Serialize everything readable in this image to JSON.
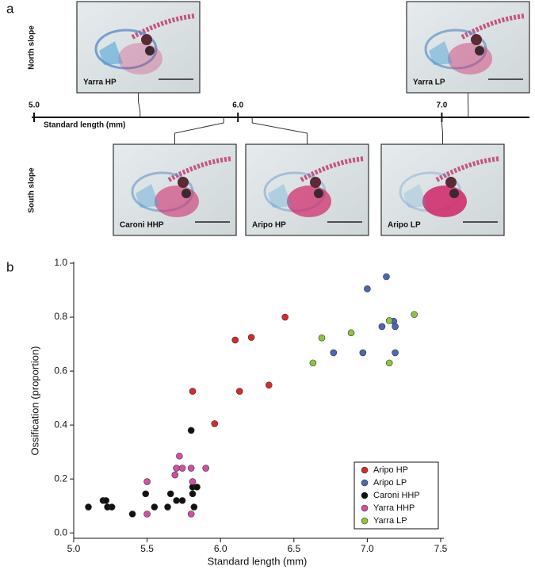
{
  "chart_data": [
    {
      "type": "specimen-axis",
      "label": "a",
      "axis_title": "Standard length (mm)",
      "xlim": [
        5.0,
        7.43
      ],
      "xticks": [
        {
          "value": 5.0,
          "label": "5.0"
        },
        {
          "value": 6.0,
          "label": "6.0"
        },
        {
          "value": 7.0,
          "label": "7.0"
        }
      ],
      "groups": [
        {
          "name": "North slope",
          "specimens": [
            {
              "name": "Yarra HP",
              "length": 5.52
            },
            {
              "name": "Yarra LP",
              "length": 7.13
            }
          ]
        },
        {
          "name": "South slope",
          "specimens": [
            {
              "name": "Caroni HHP",
              "length": 5.93
            },
            {
              "name": "Aripo HP",
              "length": 6.07
            },
            {
              "name": "Aripo LP",
              "length": 7.0
            }
          ]
        }
      ]
    },
    {
      "type": "scatter",
      "label": "b",
      "x_label": "Standard length (mm)",
      "y_label": "Ossification (proportion)",
      "xlim": [
        5.0,
        7.5
      ],
      "ylim": [
        -0.02,
        1.0
      ],
      "xticks": [
        {
          "value": 5.0,
          "label": "5.0"
        },
        {
          "value": 5.5,
          "label": "5.5"
        },
        {
          "value": 6.0,
          "label": "6.0"
        },
        {
          "value": 6.5,
          "label": "6.5"
        },
        {
          "value": 7.0,
          "label": "7.0"
        },
        {
          "value": 7.5,
          "label": "7.5"
        }
      ],
      "yticks": [
        {
          "value": 0,
          "label": "0.0"
        },
        0.2,
        0.4,
        0.6,
        0.8,
        {
          "value": 1,
          "label": "1.0"
        }
      ],
      "legend": "lower right",
      "series": [
        {
          "name": "Aripo HP",
          "color": "#d62b2b",
          "x": [
            5.81,
            5.96,
            6.1,
            6.13,
            6.21,
            6.33,
            6.44
          ],
          "values": [
            0.525,
            0.405,
            0.715,
            0.525,
            0.725,
            0.548,
            0.8
          ]
        },
        {
          "name": "Aripo LP",
          "color": "#4a68b5",
          "x": [
            7.0,
            7.13,
            6.77,
            6.97,
            7.1,
            7.18,
            7.19,
            7.19
          ],
          "values": [
            0.905,
            0.95,
            0.668,
            0.668,
            0.765,
            0.785,
            0.765,
            0.668
          ]
        },
        {
          "name": "Caroni HHP",
          "color": "#111111",
          "x": [
            5.1,
            5.2,
            5.22,
            5.23,
            5.26,
            5.4,
            5.49,
            5.55,
            5.64,
            5.66,
            5.7,
            5.74,
            5.8,
            5.81,
            5.81,
            5.82,
            5.84
          ],
          "values": [
            0.096,
            0.12,
            0.12,
            0.096,
            0.096,
            0.07,
            0.145,
            0.096,
            0.096,
            0.145,
            0.12,
            0.12,
            0.38,
            0.17,
            0.145,
            0.096,
            0.17
          ]
        },
        {
          "name": "Yarra HHP",
          "color": "#d24fa6",
          "x": [
            5.5,
            5.5,
            5.69,
            5.7,
            5.72,
            5.74,
            5.8,
            5.8,
            5.81,
            5.9
          ],
          "values": [
            0.19,
            0.07,
            0.215,
            0.24,
            0.285,
            0.24,
            0.24,
            0.07,
            0.19,
            0.24
          ]
        },
        {
          "name": "Yarra LP",
          "color": "#8cc63f",
          "x": [
            6.63,
            6.69,
            6.89,
            7.15,
            7.15,
            7.32
          ],
          "values": [
            0.63,
            0.723,
            0.742,
            0.787,
            0.63,
            0.81
          ]
        }
      ]
    }
  ]
}
